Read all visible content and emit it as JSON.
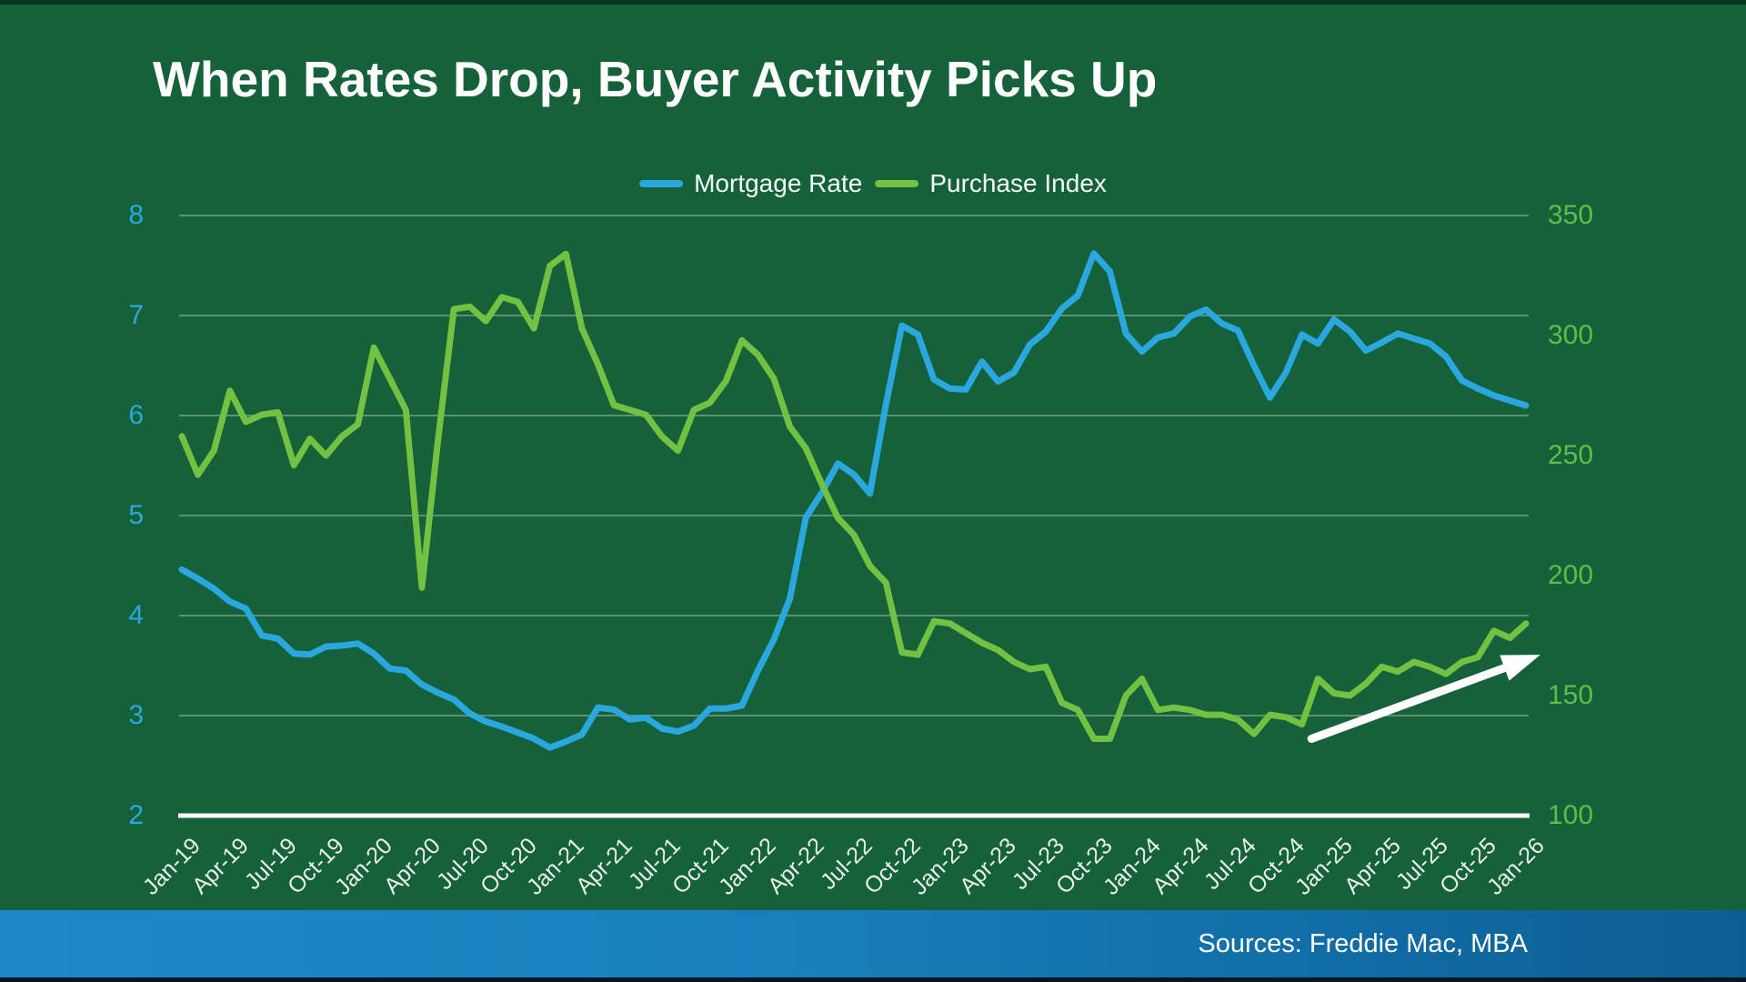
{
  "title": "When Rates Drop, Buyer Activity Picks Up",
  "legend": {
    "items": [
      {
        "label": "Mortgage Rate",
        "color": "#2BA7E0"
      },
      {
        "label": "Purchase Index",
        "color": "#72C142"
      }
    ]
  },
  "footer": {
    "sources_text": "Sources: Freddie Mac, MBA"
  },
  "colors": {
    "background": "#156139",
    "mortgage_line": "#2BA7E0",
    "purchase_line": "#72C142",
    "left_axis_labels": "#2BA7E0",
    "right_axis_labels": "#5FBE49",
    "gridline": "rgba(205,220,210,0.38)",
    "baseline": "#FFFFFF",
    "x_labels": "#E9F1EB",
    "annotation_arrow": "#FFFFFF",
    "footer_gradient_left": "#1E88C7",
    "footer_gradient_right": "#0C5E92"
  },
  "chart_data": {
    "type": "line",
    "title": "When Rates Drop, Buyer Activity Picks Up",
    "x_start": "Jan-19",
    "x_end": "Jan-26",
    "points_per_series": 85,
    "x_tick_labels": [
      "Jan-19",
      "Apr-19",
      "Jul-19",
      "Oct-19",
      "Jan-20",
      "Apr-20",
      "Jul-20",
      "Oct-20",
      "Jan-21",
      "Apr-21",
      "Jul-21",
      "Oct-21",
      "Jan-22",
      "Apr-22",
      "Jul-22",
      "Oct-22",
      "Jan-23",
      "Apr-23",
      "Jul-23",
      "Oct-23",
      "Jan-24",
      "Apr-24",
      "Jul-24",
      "Oct-24",
      "Jan-25",
      "Apr-25",
      "Jul-25",
      "Oct-25",
      "Jan-26"
    ],
    "left_axis": {
      "ticks": [
        8,
        7,
        6,
        5,
        4,
        3,
        2
      ],
      "range": [
        2,
        8
      ],
      "series": "Mortgage Rate"
    },
    "right_axis": {
      "ticks": [
        350,
        300,
        250,
        200,
        150,
        100
      ],
      "range": [
        100,
        350
      ],
      "series": "Purchase Index"
    },
    "grid": "horizontal-only",
    "legend_position": "top-center",
    "series": [
      {
        "name": "Mortgage Rate",
        "axis": "left",
        "color": "#2BA7E0",
        "values": [
          4.46,
          4.37,
          4.27,
          4.14,
          4.07,
          3.8,
          3.77,
          3.62,
          3.61,
          3.69,
          3.7,
          3.72,
          3.62,
          3.47,
          3.45,
          3.31,
          3.23,
          3.16,
          3.02,
          2.94,
          2.89,
          2.83,
          2.77,
          2.68,
          2.74,
          2.81,
          3.08,
          3.06,
          2.96,
          2.98,
          2.87,
          2.84,
          2.9,
          3.07,
          3.07,
          3.1,
          3.45,
          3.76,
          4.17,
          4.98,
          5.23,
          5.52,
          5.41,
          5.22,
          6.11,
          6.9,
          6.81,
          6.36,
          6.27,
          6.26,
          6.54,
          6.34,
          6.43,
          6.71,
          6.84,
          7.07,
          7.2,
          7.62,
          7.44,
          6.82,
          6.64,
          6.78,
          6.82,
          6.99,
          7.06,
          6.92,
          6.85,
          6.5,
          6.18,
          6.43,
          6.81,
          6.72,
          6.96,
          6.84,
          6.65,
          6.73,
          6.82,
          6.77,
          6.72,
          6.59,
          6.35,
          6.27,
          6.2,
          6.15,
          6.1
        ]
      },
      {
        "name": "Purchase Index",
        "axis": "right",
        "color": "#72C142",
        "values": [
          258,
          242,
          252,
          277,
          264,
          267,
          268,
          246,
          257,
          250,
          258,
          263,
          295,
          282,
          269,
          195,
          256,
          311,
          312,
          306,
          316,
          314,
          303,
          329,
          334,
          303,
          288,
          271,
          269,
          267,
          258,
          252,
          269,
          272,
          281,
          298,
          292,
          282,
          262,
          253,
          238,
          224,
          217,
          204,
          197,
          168,
          167,
          181,
          180,
          176,
          172,
          169,
          164,
          161,
          162,
          147,
          144,
          132,
          132,
          150,
          157,
          144,
          145,
          144,
          142,
          142,
          140,
          134,
          142,
          141,
          138,
          157,
          151,
          150,
          155,
          162,
          160,
          164,
          162,
          159,
          164,
          166,
          177,
          174,
          180
        ]
      }
    ],
    "annotation": {
      "type": "arrow",
      "color": "#FFFFFF",
      "start": {
        "month_index": 70.6,
        "right_axis_value": 132
      },
      "end": {
        "month_index": 84.9,
        "right_axis_value": 167
      }
    }
  }
}
